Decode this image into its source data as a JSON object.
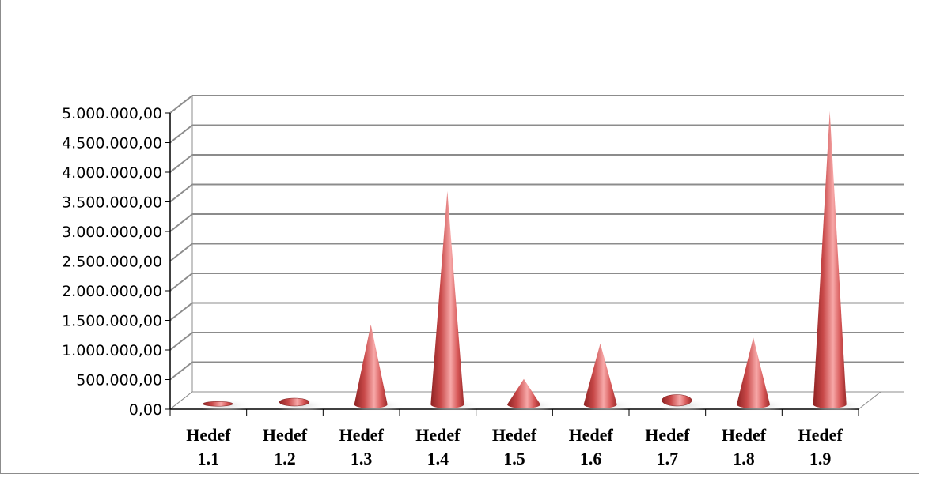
{
  "chart_data": {
    "type": "bar",
    "style": "3d-cone",
    "title": "",
    "xlabel": "",
    "ylabel": "",
    "categories": [
      "Hedef 1.1",
      "Hedef 1.2",
      "Hedef 1.3",
      "Hedef 1.4",
      "Hedef 1.5",
      "Hedef 1.6",
      "Hedef 1.7",
      "Hedef 1.8",
      "Hedef 1.9"
    ],
    "category_lines": [
      [
        "Hedef",
        "1.1"
      ],
      [
        "Hedef",
        "1.2"
      ],
      [
        "Hedef",
        "1.3"
      ],
      [
        "Hedef",
        "1.4"
      ],
      [
        "Hedef",
        "1.5"
      ],
      [
        "Hedef",
        "1.6"
      ],
      [
        "Hedef",
        "1.7"
      ],
      [
        "Hedef",
        "1.8"
      ],
      [
        "Hedef",
        "1.9"
      ]
    ],
    "values": [
      20000,
      80000,
      1350000,
      3600000,
      430000,
      1030000,
      140000,
      1130000,
      4950000
    ],
    "ylim": [
      0,
      5000000
    ],
    "yticks": [
      0,
      500000,
      1000000,
      1500000,
      2000000,
      2500000,
      3000000,
      3500000,
      4000000,
      4500000,
      5000000
    ],
    "ytick_labels": [
      "0,00",
      "500.000,00",
      "1.000.000,00",
      "1.500.000,00",
      "2.000.000,00",
      "2.500.000,00",
      "3.000.000,00",
      "3.500.000,00",
      "4.000.000,00",
      "4.500.000,00",
      "5.000.000,00"
    ],
    "grid": true,
    "legend": "none",
    "colors": {
      "cone_dark": "#8e2323",
      "cone_mid": "#d65656",
      "cone_light": "#f7a8a8",
      "grid": "#8c8c8c"
    }
  }
}
